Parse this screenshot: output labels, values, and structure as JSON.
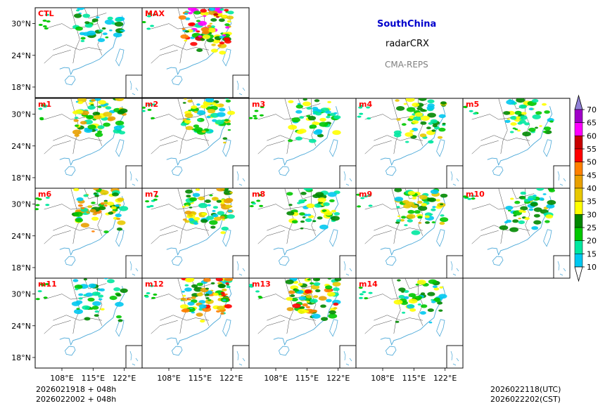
{
  "header": {
    "region": "SouthChina",
    "product": "radarCRX",
    "system": "CMA-REPS"
  },
  "footer": {
    "init_utc": "2026021918  +  048h",
    "init_cst": "2026022002  +  048h",
    "valid_utc": "2026022118(UTC)",
    "valid_cst": "2026022202(CST)"
  },
  "colors": {
    "title": "#0000cc",
    "panel_label": "#ff0000",
    "system": "#808080"
  },
  "chart_data": {
    "type": "map-panel-grid",
    "grid": {
      "rows": 4,
      "cols": 5
    },
    "panels": [
      {
        "label": "CTL",
        "row": 0,
        "col": 0,
        "intensity": 0.2
      },
      {
        "label": "MAX",
        "row": 0,
        "col": 1,
        "intensity": 1.0
      },
      {
        "label": "m1",
        "row": 1,
        "col": 0,
        "intensity": 0.55
      },
      {
        "label": "m2",
        "row": 1,
        "col": 1,
        "intensity": 0.45
      },
      {
        "label": "m3",
        "row": 1,
        "col": 2,
        "intensity": 0.35
      },
      {
        "label": "m4",
        "row": 1,
        "col": 3,
        "intensity": 0.4
      },
      {
        "label": "m5",
        "row": 1,
        "col": 4,
        "intensity": 0.3
      },
      {
        "label": "m6",
        "row": 2,
        "col": 0,
        "intensity": 0.6
      },
      {
        "label": "m7",
        "row": 2,
        "col": 1,
        "intensity": 0.55
      },
      {
        "label": "m8",
        "row": 2,
        "col": 2,
        "intensity": 0.35
      },
      {
        "label": "m9",
        "row": 2,
        "col": 3,
        "intensity": 0.45
      },
      {
        "label": "m10",
        "row": 2,
        "col": 4,
        "intensity": 0.35
      },
      {
        "label": "m11",
        "row": 3,
        "col": 0,
        "intensity": 0.25
      },
      {
        "label": "m12",
        "row": 3,
        "col": 1,
        "intensity": 0.75
      },
      {
        "label": "m13",
        "row": 3,
        "col": 2,
        "intensity": 0.7
      },
      {
        "label": "m14",
        "row": 3,
        "col": 3,
        "intensity": 0.3
      }
    ],
    "lon_ticks": [
      "108°E",
      "115°E",
      "122°E"
    ],
    "lat_ticks": [
      "30°N",
      "24°N",
      "18°N"
    ],
    "lon_range": [
      102,
      126
    ],
    "lat_range": [
      16,
      33
    ],
    "lon_tick_values": [
      108,
      115,
      122
    ],
    "lat_tick_values": [
      30,
      24,
      18
    ],
    "colorbar": {
      "levels": [
        "10",
        "15",
        "20",
        "25",
        "30",
        "35",
        "40",
        "45",
        "50",
        "55",
        "60",
        "65",
        "70"
      ],
      "colors": [
        "#0e96ec",
        "#00c8f0",
        "#00e8a0",
        "#00c800",
        "#008800",
        "#ffff00",
        "#e8c800",
        "#e8a000",
        "#ff8000",
        "#ff0000",
        "#c80000",
        "#ff00ff",
        "#a000c8",
        "#9080d8"
      ],
      "extend": "both"
    }
  }
}
